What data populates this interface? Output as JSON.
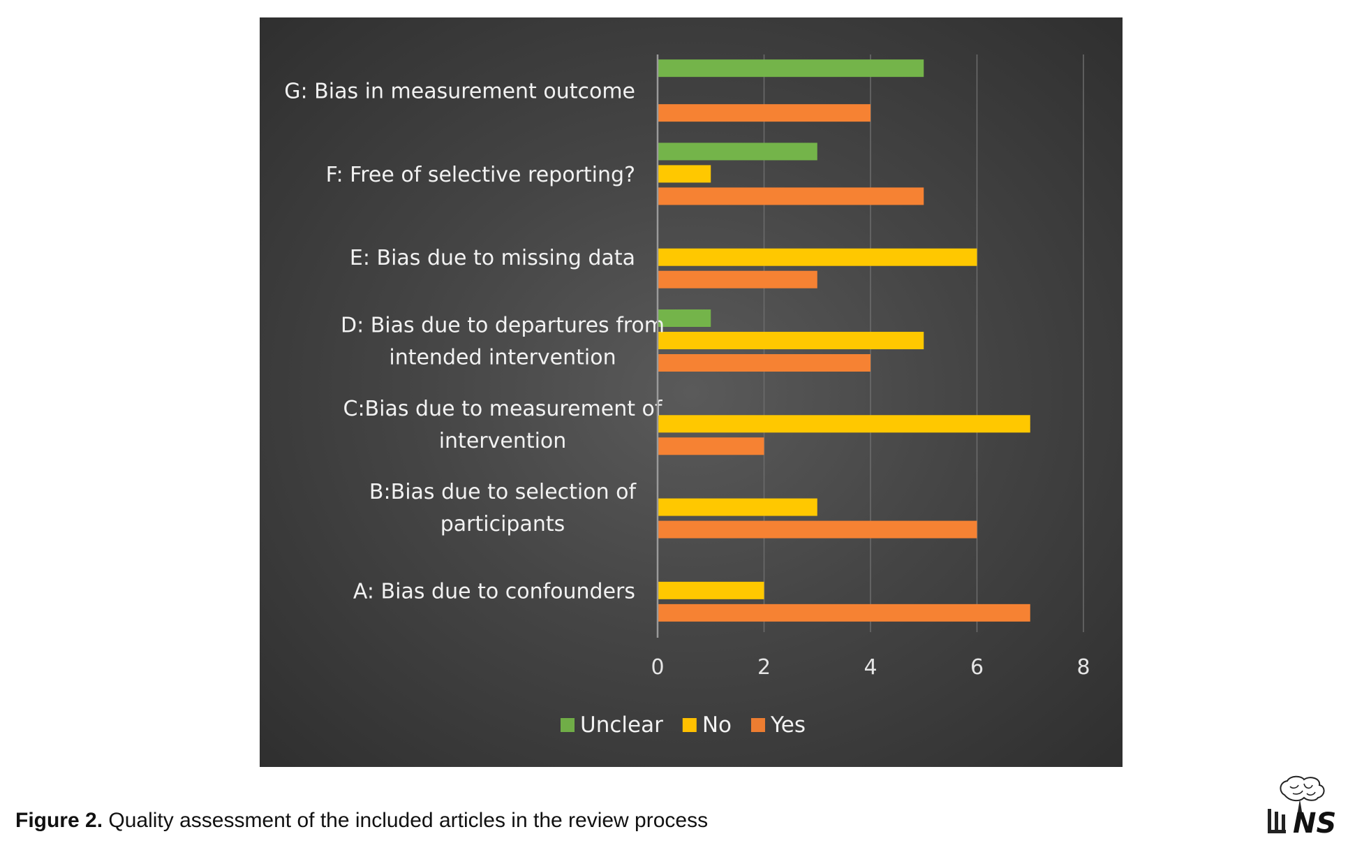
{
  "chart_data": {
    "type": "bar",
    "orientation": "horizontal",
    "categories": [
      "A: Bias due to  confounders",
      "B:Bias due to selection of participants",
      "C:Bias due to measurement of intervention",
      "D: Bias due to departures from intended  intervention",
      "E: Bias due to missing data",
      "F: Free of selective reporting?",
      "G: Bias in measurement outcome"
    ],
    "category_lines": [
      [
        "A: Bias due to  confounders"
      ],
      [
        "B:Bias due to selection of",
        "participants"
      ],
      [
        "C:Bias due to measurement of",
        "intervention"
      ],
      [
        "D: Bias due to departures from",
        "intended  intervention"
      ],
      [
        "E: Bias due to missing data"
      ],
      [
        "F: Free of selective reporting?"
      ],
      [
        "G: Bias in measurement outcome"
      ]
    ],
    "series": [
      {
        "name": "Unclear",
        "color": "#70ad47",
        "values": [
          0,
          0,
          0,
          1,
          0,
          3,
          5
        ]
      },
      {
        "name": "No",
        "color": "#ffc000",
        "values": [
          2,
          3,
          7,
          5,
          6,
          1,
          0
        ]
      },
      {
        "name": "Yes",
        "color": "#ed7d31",
        "values": [
          7,
          6,
          2,
          4,
          3,
          5,
          4
        ]
      }
    ],
    "xlim": [
      0,
      8
    ],
    "xticks": [
      0,
      2,
      4,
      6,
      8
    ],
    "grid": true,
    "legend_position": "bottom"
  },
  "caption": {
    "label": "Figure 2.",
    "text": " Quality assessment of the included articles in the review process"
  },
  "logo": {
    "text": "NS",
    "icon": "brain-logo-icon"
  }
}
